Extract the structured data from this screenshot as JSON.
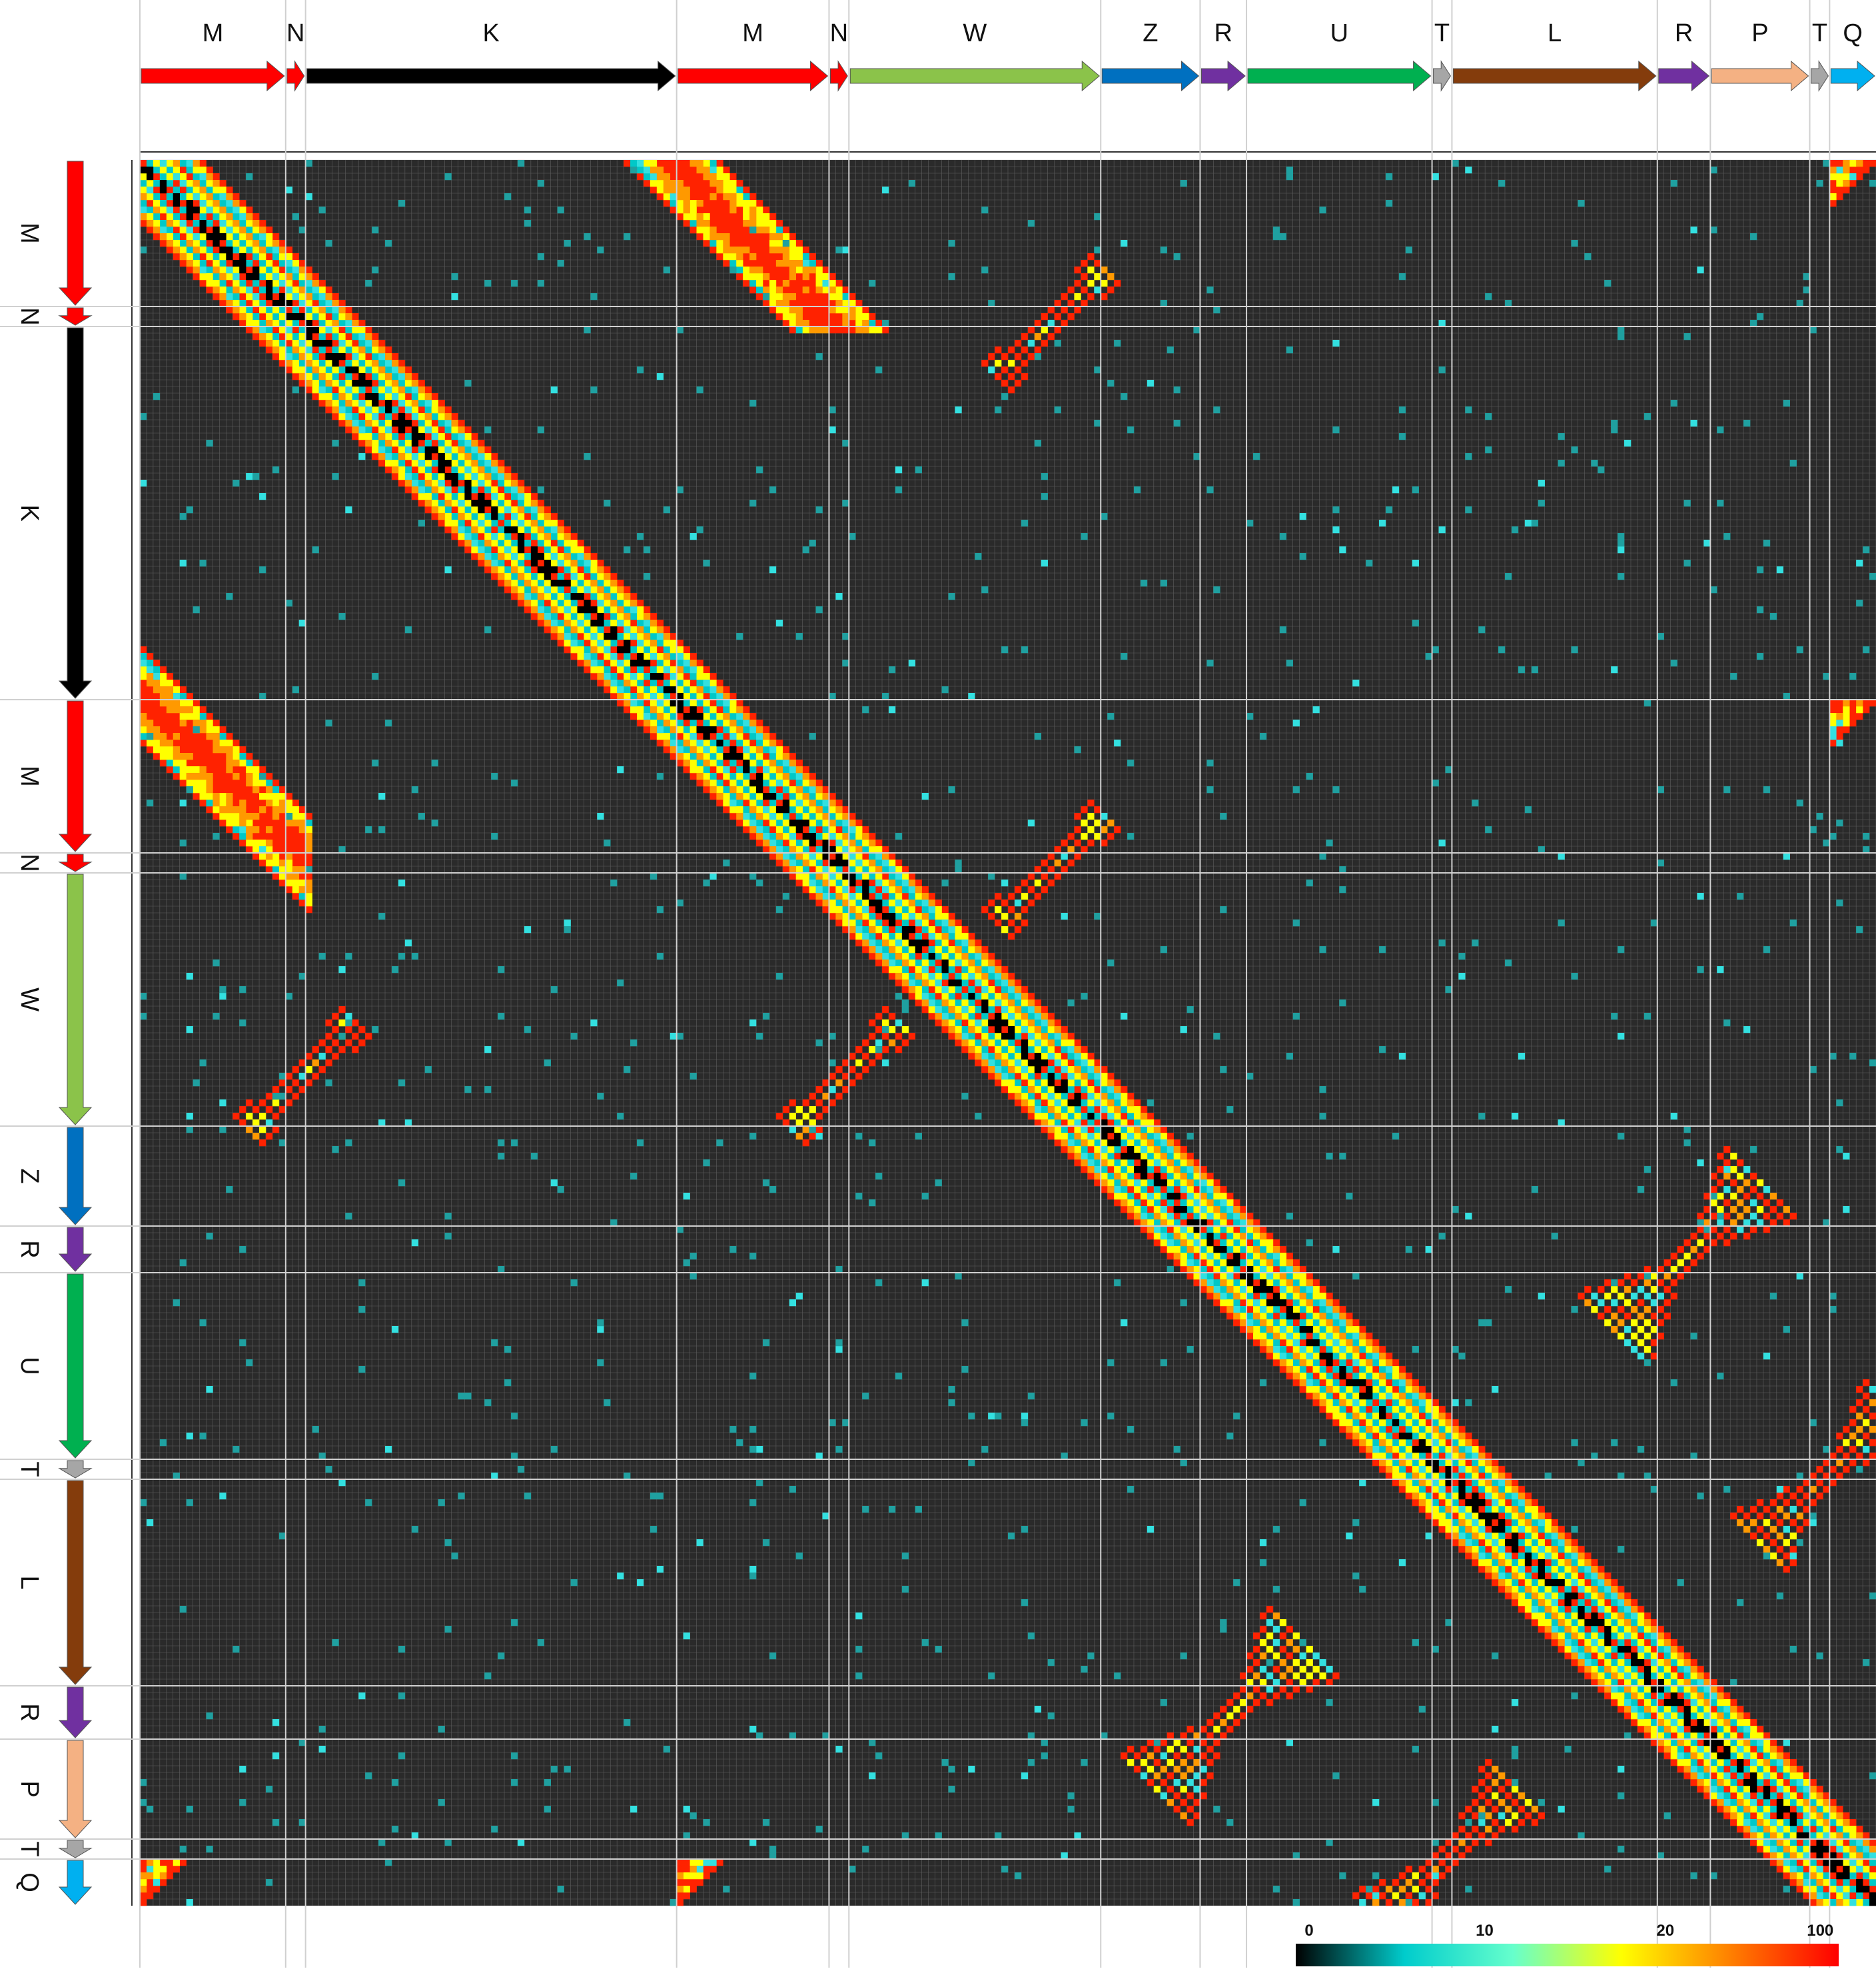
{
  "colors": {
    "background": "#ffffff",
    "matrix_background": "#2a2a2a",
    "grid": "#8a8a8a",
    "segment_line": "#d0d0d0",
    "M": "#ff0000",
    "N": "#ff0000",
    "K": "#000000",
    "W": "#8bc34a",
    "Z": "#0070c0",
    "R": "#7030a0",
    "U": "#00b050",
    "T": "#a6a6a6",
    "L": "#843c0c",
    "P": "#f4b183",
    "Q": "#00b0f0"
  },
  "chart_data": {
    "type": "heatmap",
    "title": "",
    "xlabel": "",
    "ylabel": "",
    "segments": [
      {
        "label": "M",
        "start": 0,
        "end": 22,
        "color_key": "M"
      },
      {
        "label": "N",
        "start": 22,
        "end": 25,
        "color_key": "N"
      },
      {
        "label": "K",
        "start": 25,
        "end": 81,
        "color_key": "K"
      },
      {
        "label": "M",
        "start": 81,
        "end": 104,
        "color_key": "M"
      },
      {
        "label": "N",
        "start": 104,
        "end": 107,
        "color_key": "N"
      },
      {
        "label": "W",
        "start": 107,
        "end": 145,
        "color_key": "W"
      },
      {
        "label": "Z",
        "start": 145,
        "end": 160,
        "color_key": "Z"
      },
      {
        "label": "R",
        "start": 160,
        "end": 167,
        "color_key": "R"
      },
      {
        "label": "U",
        "start": 167,
        "end": 195,
        "color_key": "U"
      },
      {
        "label": "T",
        "start": 195,
        "end": 198,
        "color_key": "T"
      },
      {
        "label": "L",
        "start": 198,
        "end": 229,
        "color_key": "L"
      },
      {
        "label": "R",
        "start": 229,
        "end": 237,
        "color_key": "R"
      },
      {
        "label": "P",
        "start": 237,
        "end": 252,
        "color_key": "P"
      },
      {
        "label": "T",
        "start": 252,
        "end": 255,
        "color_key": "T"
      },
      {
        "label": "Q",
        "start": 255,
        "end": 262,
        "color_key": "Q"
      }
    ],
    "n_positions": 262,
    "colorbar": {
      "ticks": [
        "0",
        "10",
        "20",
        "100"
      ],
      "stops": [
        "#000000",
        "#00cccc",
        "#66ffcc",
        "#ffff00",
        "#ff8000",
        "#ff0000"
      ]
    },
    "features": [
      {
        "kind": "main_diagonal",
        "start": 0,
        "end": 262,
        "note": "high identity band along self-comparison"
      },
      {
        "kind": "parallel_repeat",
        "seg_a": "M(0-22)",
        "seg_b": "M(81-104)",
        "strength": "high"
      },
      {
        "kind": "inverted_repeat",
        "seg_a": "R(160-167)",
        "seg_b": "R(229-237)",
        "strength": "high"
      },
      {
        "kind": "inverted_repeat",
        "seg_a": "T(195-198)",
        "seg_b": "T(252-255)",
        "strength": "medium"
      },
      {
        "kind": "small_inverted",
        "seg_a": "N(22-25)",
        "seg_b": "W(107-145)",
        "strength": "medium"
      },
      {
        "kind": "small_inverted",
        "seg_a": "N(104-107)",
        "seg_b": "W(107-145)",
        "strength": "medium"
      },
      {
        "kind": "diagonal_wrap",
        "seg_a": "Q(255-262)",
        "seg_b": "M(0-22)",
        "strength": "medium"
      },
      {
        "kind": "diagonal_wrap",
        "seg_a": "Q(255-262)",
        "seg_b": "M(81-104)",
        "strength": "medium"
      }
    ]
  }
}
